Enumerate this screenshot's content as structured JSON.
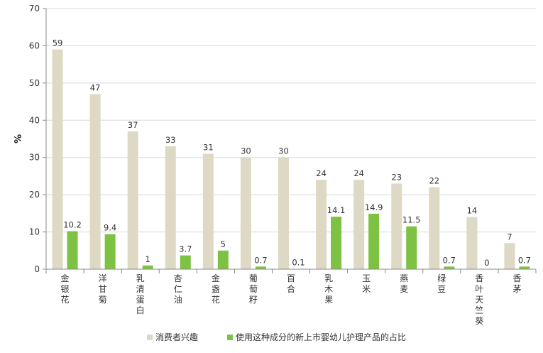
{
  "chart_data": {
    "type": "bar",
    "categories": [
      "金银花",
      "洋甘菊",
      "乳清蛋白",
      "杏仁油",
      "金盏花",
      "葡萄籽",
      "百合",
      "乳木果",
      "玉米",
      "燕麦",
      "绿豆",
      "香叶天竺葵",
      "香茅"
    ],
    "series": [
      {
        "name": "消费者兴趣",
        "color": "#ddd9c4",
        "values": [
          59,
          47,
          37,
          33,
          31,
          30,
          30,
          24,
          24,
          23,
          22,
          14,
          7
        ],
        "labels": [
          "59",
          "47",
          "37",
          "33",
          "31",
          "30",
          "30",
          "24",
          "24",
          "23",
          "22",
          "14",
          "7"
        ]
      },
      {
        "name": "使用这种成分的新上市婴幼儿护理产品的占比",
        "color": "#7dc242",
        "values": [
          10.2,
          9.4,
          1,
          3.7,
          5,
          0.7,
          0.1,
          14.1,
          14.9,
          11.5,
          0.7,
          0,
          0.7
        ],
        "labels": [
          "10.2",
          "9.4",
          "1",
          "3.7",
          "5",
          "0.7",
          "0.1",
          "14.1",
          "14.9",
          "11.5",
          "0.7",
          "0",
          "0.7"
        ]
      }
    ],
    "title": "",
    "xlabel": "",
    "ylabel": "%",
    "ylim": [
      0,
      70
    ],
    "yticks": [
      "0",
      "10",
      "20",
      "30",
      "40",
      "50",
      "60",
      "70"
    ],
    "grid": true,
    "legend": "bottom"
  }
}
